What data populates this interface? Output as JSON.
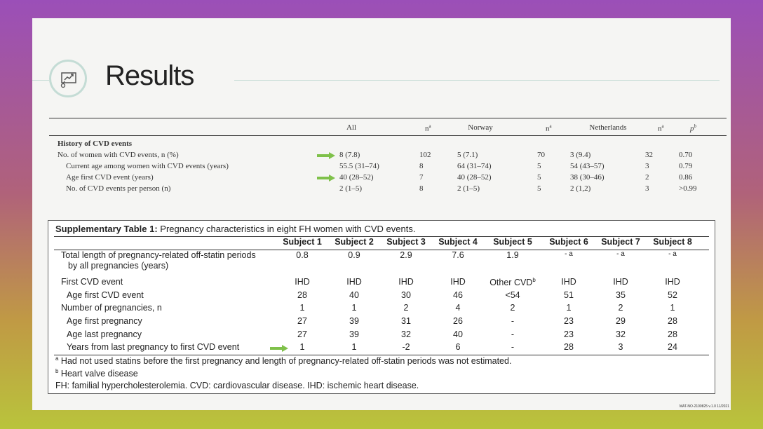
{
  "slide": {
    "title": "Results",
    "footer_code": "MAT-NO-2100825 v.1.0 11/2021"
  },
  "cvd_table": {
    "headers": {
      "all": "All",
      "n1": "n",
      "n1_sup": "a",
      "norway": "Norway",
      "n2": "n",
      "n2_sup": "a",
      "netherlands": "Netherlands",
      "n3": "n",
      "n3_sup": "a",
      "p": "p",
      "p_sup": "b"
    },
    "section_label": "History of CVD events",
    "rows": [
      {
        "label": "No. of women with CVD events, n (%)",
        "all": "8 (7.8)",
        "n1": "102",
        "norway": "5 (7.1)",
        "n2": "70",
        "netherlands": "3 (9.4)",
        "n3": "32",
        "p": "0.70"
      },
      {
        "label": "Current age among women with CVD events (years)",
        "all": "55.5 (31–74)",
        "n1": "8",
        "norway": "64 (31–74)",
        "n2": "5",
        "netherlands": "54 (43–57)",
        "n3": "3",
        "p": "0.79"
      },
      {
        "label": "Age first CVD event (years)",
        "all": "40 (28–52)",
        "n1": "7",
        "norway": "40 (28–52)",
        "n2": "5",
        "netherlands": "38 (30–46)",
        "n3": "2",
        "p": "0.86"
      },
      {
        "label": "No. of CVD events per person (n)",
        "all": "2 (1–5)",
        "n1": "8",
        "norway": "2 (1–5)",
        "n2": "5",
        "netherlands": "2 (1,2)",
        "n3": "3",
        "p": ">0.99"
      }
    ]
  },
  "supp_table": {
    "caption_bold": "Supplementary Table 1:",
    "caption_rest": " Pregnancy characteristics in eight FH women with CVD events.",
    "subjects": [
      "Subject 1",
      "Subject 2",
      "Subject 3",
      "Subject 4",
      "Subject 5",
      "Subject 6",
      "Subject 7",
      "Subject 8"
    ],
    "row_total": {
      "label_line1": "Total length of pregnancy-related off-statin periods",
      "label_line2": "by all pregnancies (years)",
      "values": [
        "0.8",
        "0.9",
        "2.9",
        "7.6",
        "1.9",
        "- a",
        "- a",
        "- a"
      ]
    },
    "row_first_cvd": {
      "label": "First CVD event",
      "values": [
        "IHD",
        "IHD",
        "IHD",
        "IHD",
        "Other CVD",
        "IHD",
        "IHD",
        "IHD"
      ],
      "value5_sup": "b"
    },
    "row_age_first_cvd": {
      "label": "Age first CVD event",
      "values": [
        "28",
        "40",
        "30",
        "46",
        "<54",
        "51",
        "35",
        "52"
      ]
    },
    "row_num_preg": {
      "label": "Number of pregnancies, n",
      "values": [
        "1",
        "1",
        "2",
        "4",
        "2",
        "1",
        "2",
        "1"
      ]
    },
    "row_age_first_preg": {
      "label": "Age first pregnancy",
      "values": [
        "27",
        "39",
        "31",
        "26",
        "-",
        "23",
        "29",
        "28"
      ]
    },
    "row_age_last_preg": {
      "label": "Age last pregnancy",
      "values": [
        "27",
        "39",
        "32",
        "40",
        "-",
        "23",
        "32",
        "28"
      ]
    },
    "row_years_from_last": {
      "label": "Years from last pregnancy to first CVD event",
      "values": [
        "1",
        "1",
        "-2",
        "6",
        "-",
        "28",
        "3",
        "24"
      ]
    },
    "footnote_a_sup": "a",
    "footnote_a": " Had not used statins before the first pregnancy and length of pregnancy-related off-statin periods was not estimated.",
    "footnote_b_sup": "b",
    "footnote_b": " Heart valve disease",
    "footnote_abbrev": "FH: familial hypercholesterolemia. CVD: cardiovascular disease. IHD: ischemic heart disease."
  },
  "colors": {
    "arrow": "#7fc14a",
    "logo_ring": "#c4dcd5"
  }
}
